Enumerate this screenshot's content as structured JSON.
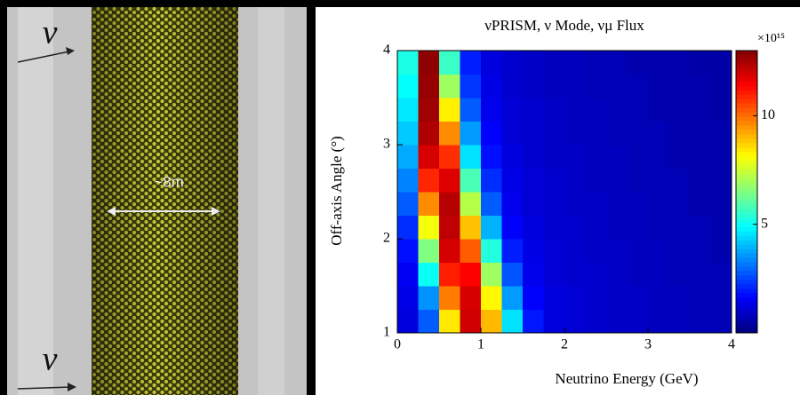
{
  "image_labels": [
    "ν",
    "~8m",
    "ν"
  ],
  "chart_data": {
    "type": "heatmap",
    "title": "νPRISM, ν Mode, νμ Flux",
    "x_label": "Neutrino Energy (GeV)",
    "y_label": "Off-axis Angle (°)",
    "x": [
      0.125,
      0.375,
      0.625,
      0.875,
      1.125,
      1.375,
      1.625,
      1.875,
      2.125,
      2.375,
      2.625,
      2.875,
      3.125,
      3.375,
      3.625,
      3.875
    ],
    "y": [
      1.125,
      1.375,
      1.625,
      1.875,
      2.125,
      2.375,
      2.625,
      2.875,
      3.125,
      3.375,
      3.625,
      3.875
    ],
    "values": [
      [
        1.2,
        2.8,
        8.4,
        12.0,
        9.0,
        4.5,
        1.9,
        1.2,
        1.1,
        1.0,
        0.9,
        0.9,
        0.8,
        0.8,
        0.7,
        0.7
      ],
      [
        1.3,
        3.5,
        9.8,
        11.9,
        8.2,
        3.6,
        1.6,
        1.2,
        1.1,
        1.0,
        0.9,
        0.9,
        0.8,
        0.8,
        0.7,
        0.7
      ],
      [
        1.5,
        5.0,
        11.0,
        11.4,
        6.9,
        2.7,
        1.4,
        1.1,
        1.0,
        1.0,
        0.9,
        0.8,
        0.8,
        0.7,
        0.7,
        0.7
      ],
      [
        1.8,
        6.5,
        11.9,
        10.2,
        5.3,
        2.0,
        1.3,
        1.1,
        1.0,
        0.9,
        0.9,
        0.8,
        0.8,
        0.7,
        0.7,
        0.6
      ],
      [
        2.2,
        8.0,
        12.2,
        8.9,
        3.9,
        1.6,
        1.2,
        1.0,
        1.0,
        0.9,
        0.8,
        0.8,
        0.7,
        0.7,
        0.7,
        0.6
      ],
      [
        2.8,
        9.6,
        12.3,
        7.2,
        2.8,
        1.4,
        1.1,
        1.0,
        0.9,
        0.9,
        0.8,
        0.8,
        0.7,
        0.7,
        0.6,
        0.6
      ],
      [
        3.3,
        10.9,
        11.8,
        5.8,
        2.2,
        1.3,
        1.1,
        1.0,
        0.9,
        0.8,
        0.8,
        0.7,
        0.7,
        0.7,
        0.6,
        0.6
      ],
      [
        3.8,
        11.9,
        10.8,
        4.5,
        1.8,
        1.2,
        1.0,
        0.9,
        0.9,
        0.8,
        0.8,
        0.7,
        0.7,
        0.6,
        0.6,
        0.6
      ],
      [
        4.2,
        12.4,
        9.6,
        3.6,
        1.6,
        1.1,
        1.0,
        0.9,
        0.8,
        0.8,
        0.7,
        0.7,
        0.7,
        0.6,
        0.6,
        0.6
      ],
      [
        4.6,
        12.6,
        8.3,
        2.8,
        1.4,
        1.1,
        1.0,
        0.9,
        0.8,
        0.8,
        0.7,
        0.7,
        0.6,
        0.6,
        0.6,
        0.5
      ],
      [
        4.9,
        12.7,
        6.9,
        2.3,
        1.3,
        1.0,
        0.9,
        0.8,
        0.8,
        0.7,
        0.7,
        0.7,
        0.6,
        0.6,
        0.6,
        0.5
      ],
      [
        5.2,
        12.8,
        5.6,
        2.0,
        1.2,
        1.0,
        0.9,
        0.8,
        0.8,
        0.7,
        0.7,
        0.6,
        0.6,
        0.6,
        0.5,
        0.5
      ]
    ],
    "xlim": [
      0,
      4
    ],
    "ylim": [
      1,
      4
    ],
    "xticks": [
      0,
      1,
      2,
      3,
      4
    ],
    "yticks": [
      1,
      2,
      3,
      4
    ],
    "colormap": "jet",
    "clim": [
      0,
      13
    ],
    "cticks": [
      5,
      10
    ],
    "colorbar_multiplier": "×10¹⁵"
  }
}
